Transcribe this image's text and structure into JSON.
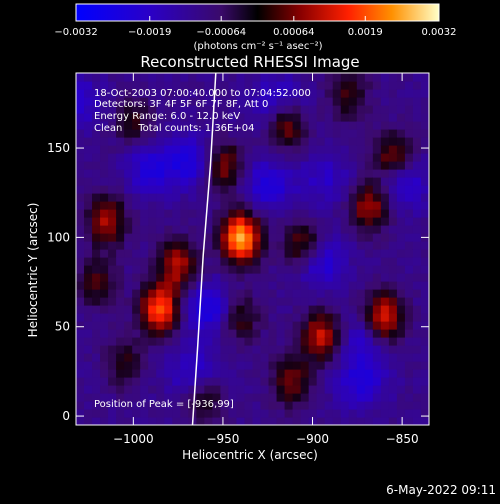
{
  "chart_data": {
    "type": "heatmap",
    "title": "Reconstructed RHESSI Image",
    "xlabel": "Heliocentric X (arcsec)",
    "ylabel": "Heliocentric Y (arcsec)",
    "xlim": [
      -1032,
      -835
    ],
    "ylim": [
      -5,
      192
    ],
    "xticks": [
      {
        "value": -1000,
        "label": "−1000"
      },
      {
        "value": -950,
        "label": "−950"
      },
      {
        "value": -900,
        "label": "−900"
      },
      {
        "value": -850,
        "label": "−850"
      }
    ],
    "yticks": [
      {
        "value": 0,
        "label": "0"
      },
      {
        "value": 50,
        "label": "50"
      },
      {
        "value": 100,
        "label": "100"
      },
      {
        "value": 150,
        "label": "150"
      }
    ],
    "colorbar": {
      "range": [
        -0.0032,
        0.0032
      ],
      "ticks": [
        {
          "value": -0.0032,
          "label": "−0.0032"
        },
        {
          "value": -0.0019,
          "label": "−0.0019"
        },
        {
          "value": -0.00064,
          "label": "−0.00064"
        },
        {
          "value": 0.00064,
          "label": "0.00064"
        },
        {
          "value": 0.0019,
          "label": "0.0019"
        },
        {
          "value": 0.0032,
          "label": "0.0032"
        }
      ],
      "unit_label": "(photons cm⁻² s⁻¹ asec⁻²)"
    },
    "annotations": [
      "18-Oct-2003 07:00:40.000 to 07:04:52.000",
      "Detectors: 3F 4F 5F 6F 7F 8F, Att 0",
      "Energy Range: 6.0 - 12.0 keV",
      "Clean     Total counts: 1.36E+04"
    ],
    "peak_label": "Position of Peak = [-936,99]",
    "peak": {
      "x": -936,
      "y": 99
    },
    "sources": [
      {
        "x": -940,
        "y": 100,
        "intensity": 1.0
      },
      {
        "x": -950,
        "y": 140,
        "intensity": 0.55
      },
      {
        "x": -985,
        "y": 60,
        "intensity": 0.8
      },
      {
        "x": -975,
        "y": 85,
        "intensity": 0.55
      },
      {
        "x": -1015,
        "y": 110,
        "intensity": 0.55
      },
      {
        "x": -1020,
        "y": 75,
        "intensity": 0.35
      },
      {
        "x": -915,
        "y": 165,
        "intensity": 0.6
      },
      {
        "x": -905,
        "y": 95,
        "intensity": 0.55
      },
      {
        "x": -895,
        "y": 45,
        "intensity": 0.6
      },
      {
        "x": -912,
        "y": 20,
        "intensity": 0.45
      },
      {
        "x": -868,
        "y": 118,
        "intensity": 0.55
      },
      {
        "x": -860,
        "y": 55,
        "intensity": 0.7
      },
      {
        "x": -855,
        "y": 145,
        "intensity": 0.5
      },
      {
        "x": -1005,
        "y": 30,
        "intensity": 0.3
      },
      {
        "x": -940,
        "y": 55,
        "intensity": 0.35
      },
      {
        "x": -960,
        "y": 10,
        "intensity": 0.3
      },
      {
        "x": -880,
        "y": 180,
        "intensity": 0.35
      },
      {
        "x": -1000,
        "y": 165,
        "intensity": 0.3
      }
    ],
    "limb_curve": [
      [
        -967,
        -5
      ],
      [
        -964,
        40
      ],
      [
        -961,
        90
      ],
      [
        -957,
        140
      ],
      [
        -954,
        192
      ]
    ],
    "limb_color": "#ffffff",
    "background": "#000000"
  },
  "footer_timestamp": "6-May-2022 09:11"
}
